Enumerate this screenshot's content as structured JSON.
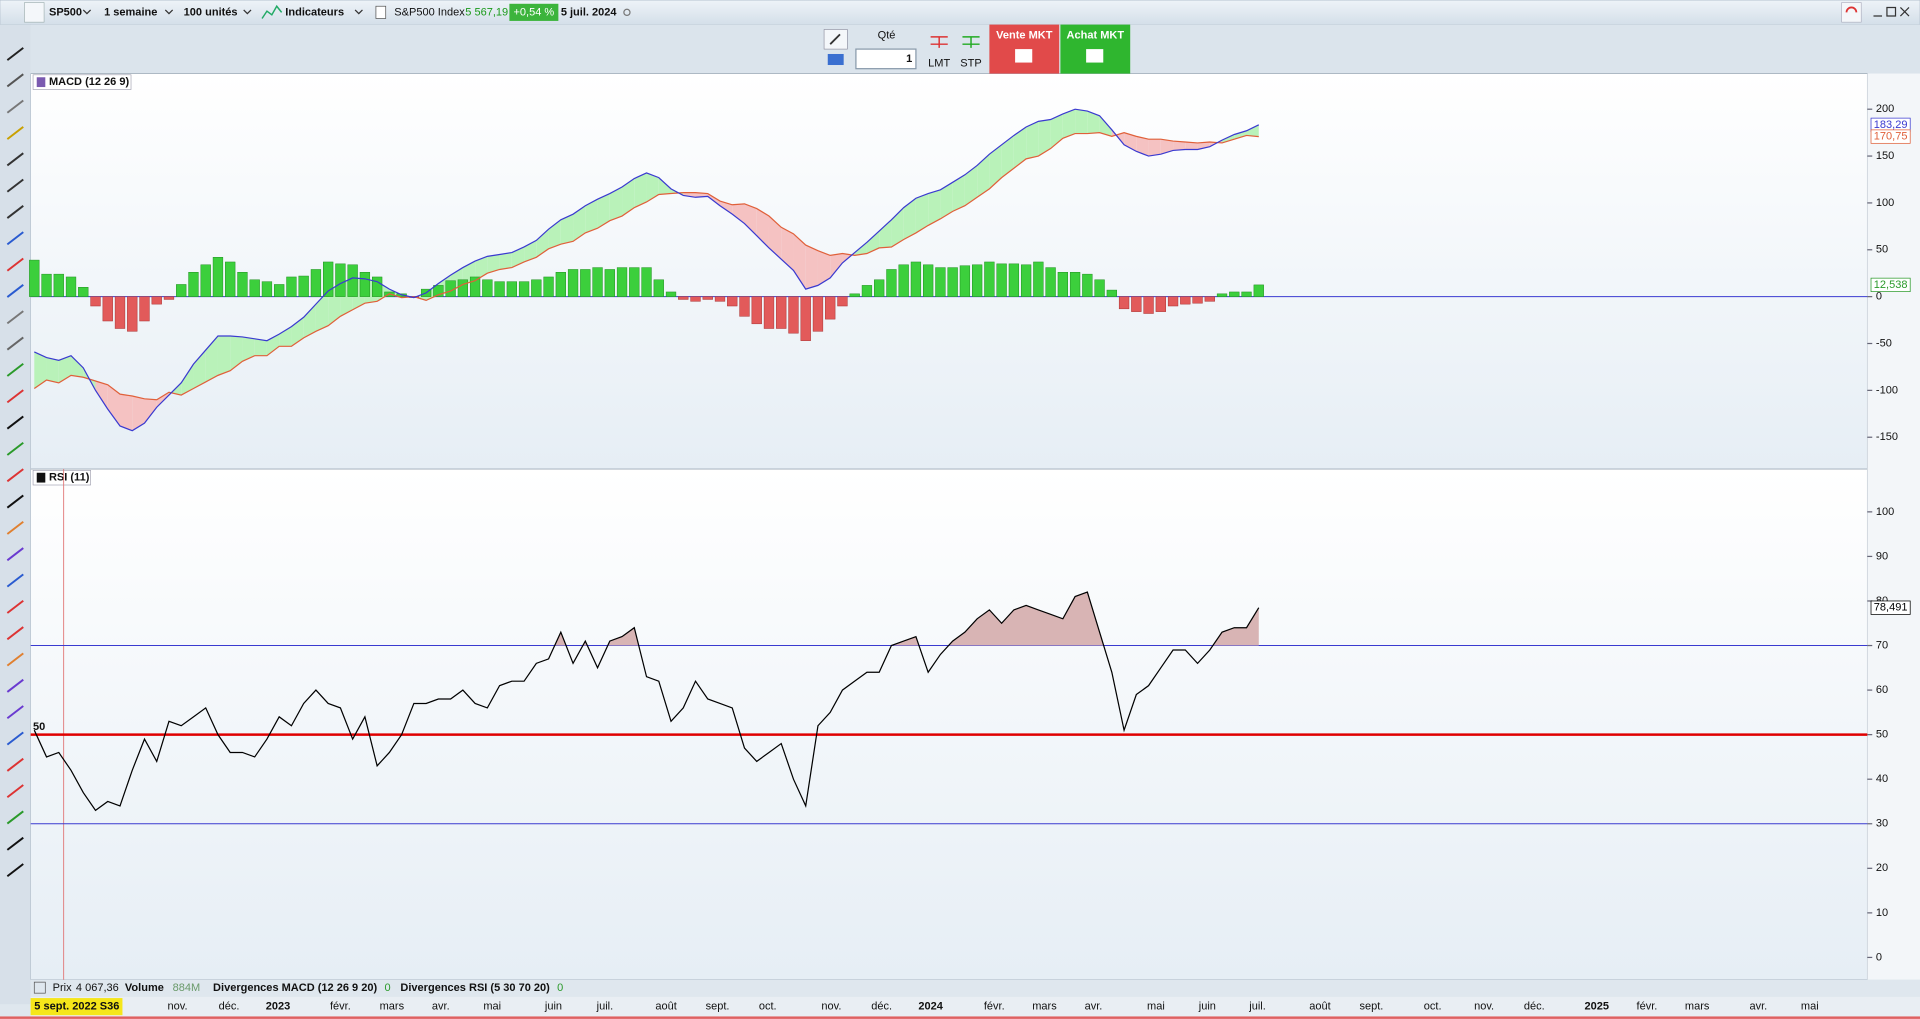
{
  "toolbar": {
    "instrument": "SP500",
    "period": "1 semaine",
    "units": "100 unités",
    "indicators": "Indicateurs",
    "index_name": "S&P500 Index",
    "price": "5 567,19",
    "change": "+0,54 %",
    "date": "5 juil. 2024",
    "qty_label": "Qté",
    "qty": 1,
    "lmt": "LMT",
    "stp": "STP",
    "sell": "Vente MKT",
    "buy": "Achat MKT"
  },
  "time_axis": {
    "xlim": [
      -0.3,
      149.7
    ],
    "cursor": {
      "value": 2.4,
      "label": "5 sept. 2022 S36"
    },
    "xticks": [
      {
        "value": 11.7,
        "label": "nov."
      },
      {
        "value": 15.9,
        "label": "déc."
      },
      {
        "value": 19.9,
        "label": "2023"
      },
      {
        "value": 25,
        "label": "févr."
      },
      {
        "value": 29.2,
        "label": "mars"
      },
      {
        "value": 33.2,
        "label": "avr."
      },
      {
        "value": 37.4,
        "label": "mai"
      },
      {
        "value": 42.4,
        "label": "juin"
      },
      {
        "value": 46.6,
        "label": "juil."
      },
      {
        "value": 51.6,
        "label": "août"
      },
      {
        "value": 55.8,
        "label": "sept."
      },
      {
        "value": 59.9,
        "label": "oct."
      },
      {
        "value": 65.1,
        "label": "nov."
      },
      {
        "value": 69.2,
        "label": "déc."
      },
      {
        "value": 73.2,
        "label": "2024"
      },
      {
        "value": 78.4,
        "label": "févr."
      },
      {
        "value": 82.5,
        "label": "mars"
      },
      {
        "value": 86.5,
        "label": "avr."
      },
      {
        "value": 91.6,
        "label": "mai"
      },
      {
        "value": 95.8,
        "label": "juin"
      },
      {
        "value": 99.9,
        "label": "juil."
      },
      {
        "value": 105,
        "label": "août"
      },
      {
        "value": 109.2,
        "label": "sept."
      },
      {
        "value": 114.2,
        "label": "oct."
      },
      {
        "value": 118.4,
        "label": "nov."
      },
      {
        "value": 122.5,
        "label": "déc."
      },
      {
        "value": 127.6,
        "label": "2025"
      },
      {
        "value": 131.7,
        "label": "févr."
      },
      {
        "value": 135.8,
        "label": "mars"
      },
      {
        "value": 140.8,
        "label": "avr."
      },
      {
        "value": 145,
        "label": "mai"
      }
    ]
  },
  "chart_data": [
    {
      "type": "macd",
      "title": "MACD (12 26 9)",
      "ylim": [
        -184,
        238
      ],
      "yticks": [
        200,
        150,
        100,
        50,
        0,
        -50,
        -100,
        -150
      ],
      "zero_line_color": "#3a3ad0",
      "fill_up": "#b9f2b9",
      "fill_down": "#f5c2c2",
      "series": [
        {
          "type": "bar",
          "color": "#3ccf3c",
          "negative_color": "#e25a5a",
          "last_label": "12,538",
          "values": [
            39,
            24,
            24,
            21,
            10,
            -10,
            -26,
            -34,
            -37,
            -26,
            -8,
            -3,
            13,
            26,
            34,
            42,
            37,
            26,
            18,
            16,
            13,
            21,
            22,
            29,
            37,
            35,
            34,
            26,
            21,
            5,
            3,
            -1,
            8,
            12,
            17,
            18,
            21,
            18,
            16,
            16,
            16,
            18,
            21,
            26,
            29,
            29,
            31,
            29,
            31,
            31,
            31,
            18,
            5,
            -3,
            -5,
            -3,
            -5,
            -10,
            -21,
            -29,
            -34,
            -34,
            -39,
            -47,
            -37,
            -24,
            -10,
            3,
            12,
            18,
            29,
            34,
            37,
            34,
            31,
            31,
            33,
            34,
            37,
            35,
            35,
            34,
            37,
            31,
            26,
            26,
            24,
            18,
            7,
            -13,
            -16,
            -18,
            -16,
            -10,
            -8,
            -7,
            -5,
            3,
            5,
            5,
            12.538
          ]
        },
        {
          "type": "line",
          "color": "#3a3ad0",
          "last_label": "183,29",
          "values": [
            -59,
            -65,
            -68,
            -63,
            -76,
            -100,
            -120,
            -138,
            -143,
            -135,
            -118,
            -105,
            -92,
            -72,
            -57,
            -42,
            -42,
            -43,
            -45,
            -47,
            -40,
            -32,
            -22,
            -8,
            6,
            14,
            20,
            19,
            16,
            8,
            2,
            -1,
            4,
            14,
            23,
            31,
            38,
            43,
            45,
            47,
            53,
            60,
            72,
            82,
            88,
            97,
            104,
            110,
            117,
            126,
            132,
            127,
            115,
            108,
            106,
            107,
            97,
            88,
            78,
            65,
            52,
            40,
            28,
            8,
            12,
            20,
            36,
            47,
            58,
            70,
            82,
            95,
            105,
            110,
            114,
            122,
            130,
            140,
            152,
            162,
            172,
            181,
            187,
            189,
            195,
            200,
            198,
            193,
            178,
            162,
            155,
            150,
            152,
            156,
            157,
            157,
            160,
            167,
            173,
            177,
            183.29
          ]
        },
        {
          "type": "line",
          "color": "#e0603a",
          "last_label": "170,75",
          "values": [
            -98,
            -89,
            -92,
            -84,
            -86,
            -90,
            -94,
            -104,
            -106,
            -109,
            -110,
            -102,
            -105,
            -98,
            -91,
            -84,
            -79,
            -69,
            -63,
            -63,
            -53,
            -53,
            -44,
            -37,
            -31,
            -21,
            -14,
            -7,
            -5,
            3,
            -1,
            0,
            -4,
            2,
            6,
            13,
            17,
            25,
            29,
            31,
            37,
            42,
            51,
            56,
            59,
            68,
            73,
            81,
            86,
            95,
            101,
            109,
            110,
            111,
            111,
            110,
            102,
            98,
            99,
            94,
            86,
            74,
            67,
            55,
            49,
            44,
            46,
            44,
            46,
            52,
            53,
            61,
            68,
            76,
            83,
            91,
            97,
            106,
            115,
            127,
            137,
            147,
            150,
            158,
            169,
            174,
            174,
            175,
            171,
            175,
            171,
            168,
            168,
            166,
            165,
            164,
            165,
            164,
            168,
            172,
            170.75
          ]
        }
      ]
    },
    {
      "type": "line",
      "title": "RSI (11)",
      "color": "#000000",
      "fill_color": "#d8b4b4",
      "overbought": 70,
      "last_label": "78,491",
      "ylim": [
        -5,
        109.6
      ],
      "yticks": [
        0,
        10,
        20,
        30,
        40,
        50,
        60,
        70,
        80,
        90,
        100
      ],
      "levels": [
        {
          "value": 70,
          "color": "#3a3ad0"
        },
        {
          "value": 50,
          "color": "#e00000"
        },
        {
          "value": 30,
          "color": "#3a3ad0"
        }
      ],
      "values": [
        51,
        45,
        46,
        42,
        37,
        33,
        35,
        34,
        42,
        49,
        44,
        53,
        52,
        54,
        56,
        50,
        46,
        46,
        45,
        49,
        54,
        52,
        57,
        60,
        57,
        56,
        49,
        54,
        43,
        46,
        50,
        57,
        57,
        58,
        58,
        60,
        57,
        56,
        61,
        62,
        62,
        66,
        67,
        73,
        66,
        71,
        65,
        71,
        72,
        74,
        63,
        62,
        53,
        56,
        62,
        58,
        57,
        56,
        47,
        44,
        46,
        48,
        40,
        34,
        52,
        55,
        60,
        62,
        64,
        64,
        70,
        71,
        72,
        64,
        68,
        71,
        73,
        76,
        78,
        75,
        78,
        79,
        78,
        77,
        76,
        81,
        82,
        73,
        64,
        51,
        59,
        61,
        65,
        69,
        69,
        66,
        69,
        73,
        74,
        74,
        78.491
      ]
    }
  ],
  "footer": {
    "price_label": "Prix",
    "price": "4 067,36",
    "volume_label": "Volume",
    "volume": "884M",
    "div_macd": "Divergences MACD (12 26 9 20)",
    "div_macd_count": 0,
    "div_rsi": "Divergences RSI (5 30 70 20)",
    "div_rsi_count": 0
  }
}
